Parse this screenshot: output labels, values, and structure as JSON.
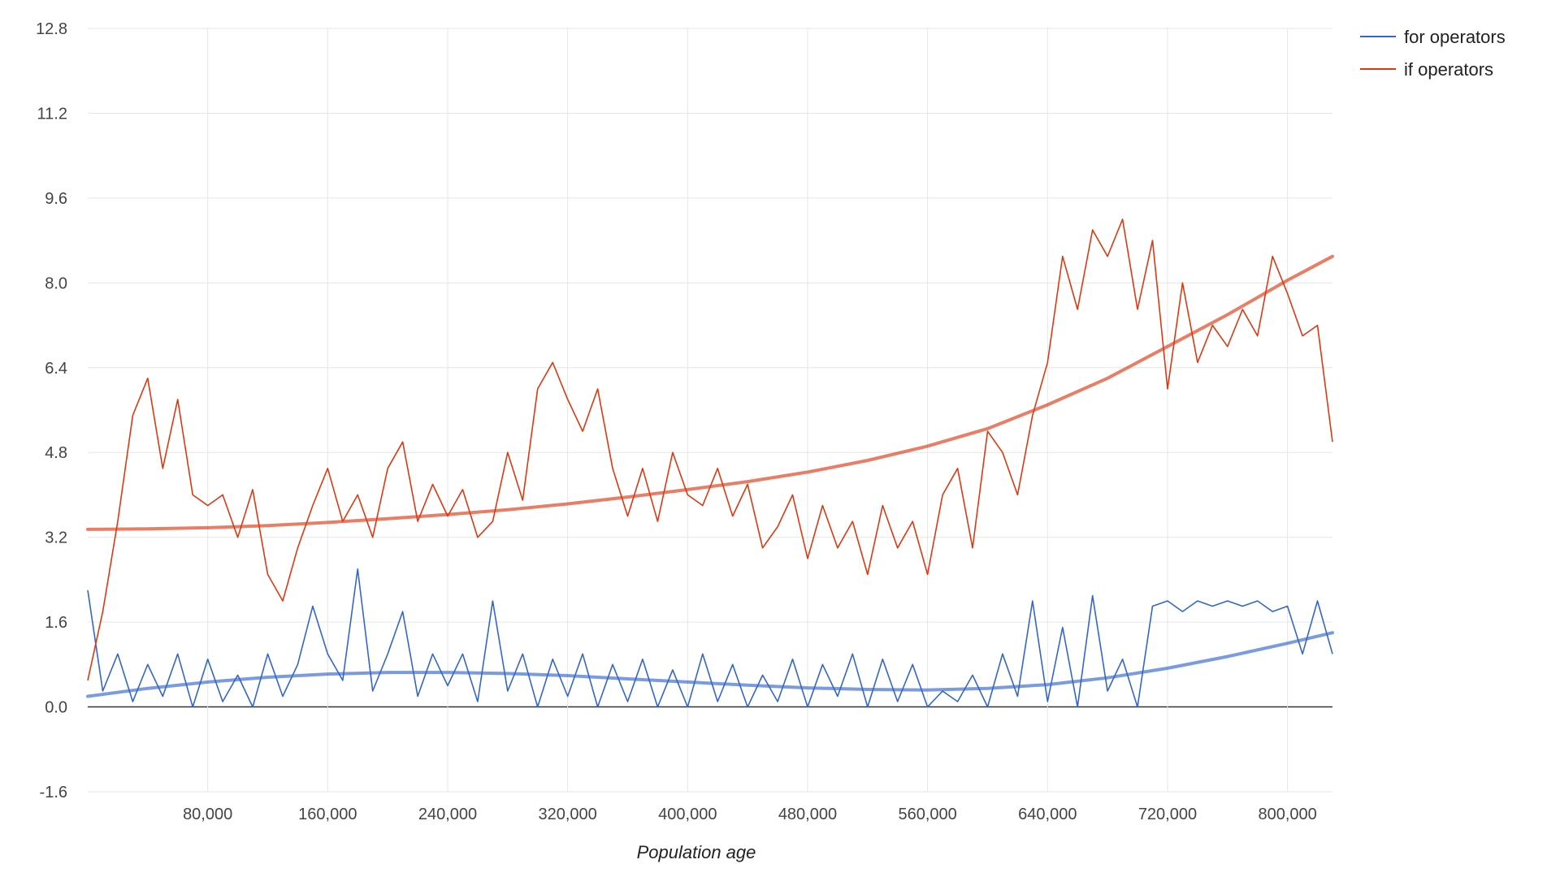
{
  "chart_data": {
    "type": "line",
    "title": "",
    "xlabel": "Population age",
    "ylabel": "",
    "xlim": [
      0,
      830000
    ],
    "ylim": [
      -1.6,
      12.8
    ],
    "grid": true,
    "legend_position": "top-right",
    "x_ticks": [
      80000,
      160000,
      240000,
      320000,
      400000,
      480000,
      560000,
      640000,
      720000,
      800000
    ],
    "x_tick_labels": [
      "80,000",
      "160,000",
      "240,000",
      "320,000",
      "400,000",
      "480,000",
      "560,000",
      "640,000",
      "720,000",
      "800,000"
    ],
    "y_ticks": [
      -1.6,
      0,
      1.6,
      3.2,
      4.8,
      6.4,
      8,
      9.6,
      11.2,
      12.8
    ],
    "y_tick_labels": [
      "-1.6",
      "0.0",
      "1.6",
      "3.2",
      "4.8",
      "6.4",
      "8.0",
      "9.6",
      "11.2",
      "12.8"
    ],
    "series": [
      {
        "name": "for operators",
        "color": "#3366cc",
        "x": [
          0,
          10000,
          20000,
          30000,
          40000,
          50000,
          60000,
          70000,
          80000,
          90000,
          100000,
          110000,
          120000,
          130000,
          140000,
          150000,
          160000,
          170000,
          180000,
          190000,
          200000,
          210000,
          220000,
          230000,
          240000,
          250000,
          260000,
          270000,
          280000,
          290000,
          300000,
          310000,
          320000,
          330000,
          340000,
          350000,
          360000,
          370000,
          380000,
          390000,
          400000,
          410000,
          420000,
          430000,
          440000,
          450000,
          460000,
          470000,
          480000,
          490000,
          500000,
          510000,
          520000,
          530000,
          540000,
          550000,
          560000,
          570000,
          580000,
          590000,
          600000,
          610000,
          620000,
          630000,
          640000,
          650000,
          660000,
          670000,
          680000,
          690000,
          700000,
          710000,
          720000,
          730000,
          740000,
          750000,
          760000,
          770000,
          780000,
          790000,
          800000,
          810000,
          820000,
          830000
        ],
        "values": [
          2.2,
          0.3,
          1.0,
          0.1,
          0.8,
          0.2,
          1.0,
          0.0,
          0.9,
          0.1,
          0.6,
          0.0,
          1.0,
          0.2,
          0.8,
          1.9,
          1.0,
          0.5,
          2.6,
          0.3,
          1.0,
          1.8,
          0.2,
          1.0,
          0.4,
          1.0,
          0.1,
          2.0,
          0.3,
          1.0,
          0.0,
          0.9,
          0.2,
          1.0,
          0.0,
          0.8,
          0.1,
          0.9,
          0.0,
          0.7,
          0.0,
          1.0,
          0.1,
          0.8,
          0.0,
          0.6,
          0.1,
          0.9,
          0.0,
          0.8,
          0.2,
          1.0,
          0.0,
          0.9,
          0.1,
          0.8,
          0.0,
          0.3,
          0.1,
          0.6,
          0.0,
          1.0,
          0.2,
          2.0,
          0.1,
          1.5,
          0.0,
          2.1,
          0.3,
          0.9,
          0.0,
          1.9,
          2.0,
          1.8,
          2.0,
          1.9,
          2.0,
          1.9,
          2.0,
          1.8,
          1.9,
          1.0,
          2.0,
          1.0
        ],
        "trendline": {
          "x": [
            0,
            40000,
            80000,
            120000,
            160000,
            200000,
            240000,
            280000,
            320000,
            360000,
            400000,
            440000,
            480000,
            520000,
            560000,
            600000,
            640000,
            680000,
            720000,
            760000,
            800000,
            830000
          ],
          "values": [
            0.2,
            0.35,
            0.47,
            0.56,
            0.62,
            0.65,
            0.65,
            0.63,
            0.59,
            0.53,
            0.47,
            0.41,
            0.36,
            0.33,
            0.32,
            0.35,
            0.42,
            0.55,
            0.73,
            0.95,
            1.2,
            1.4
          ]
        }
      },
      {
        "name": "if operators",
        "color": "#dc3912",
        "x": [
          0,
          10000,
          20000,
          30000,
          40000,
          50000,
          60000,
          70000,
          80000,
          90000,
          100000,
          110000,
          120000,
          130000,
          140000,
          150000,
          160000,
          170000,
          180000,
          190000,
          200000,
          210000,
          220000,
          230000,
          240000,
          250000,
          260000,
          270000,
          280000,
          290000,
          300000,
          310000,
          320000,
          330000,
          340000,
          350000,
          360000,
          370000,
          380000,
          390000,
          400000,
          410000,
          420000,
          430000,
          440000,
          450000,
          460000,
          470000,
          480000,
          490000,
          500000,
          510000,
          520000,
          530000,
          540000,
          550000,
          560000,
          570000,
          580000,
          590000,
          600000,
          610000,
          620000,
          630000,
          640000,
          650000,
          660000,
          670000,
          680000,
          690000,
          700000,
          710000,
          720000,
          730000,
          740000,
          750000,
          760000,
          770000,
          780000,
          790000,
          800000,
          810000,
          820000,
          830000
        ],
        "values": [
          0.5,
          1.8,
          3.5,
          5.5,
          6.2,
          4.5,
          5.8,
          4.0,
          3.8,
          4.0,
          3.2,
          4.1,
          2.5,
          2.0,
          3.0,
          3.8,
          4.5,
          3.5,
          4.0,
          3.2,
          4.5,
          5.0,
          3.5,
          4.2,
          3.6,
          4.1,
          3.2,
          3.5,
          4.8,
          3.9,
          6.0,
          6.5,
          5.8,
          5.2,
          6.0,
          4.5,
          3.6,
          4.5,
          3.5,
          4.8,
          4.0,
          3.8,
          4.5,
          3.6,
          4.2,
          3.0,
          3.4,
          4.0,
          2.8,
          3.8,
          3.0,
          3.5,
          2.5,
          3.8,
          3.0,
          3.5,
          2.5,
          4.0,
          4.5,
          3.0,
          5.2,
          4.8,
          4.0,
          5.5,
          6.5,
          8.5,
          7.5,
          9.0,
          8.5,
          9.2,
          7.5,
          8.8,
          6.0,
          8.0,
          6.5,
          7.2,
          6.8,
          7.5,
          7.0,
          8.5,
          7.8,
          7.0,
          7.2,
          5.0
        ],
        "trendline": {
          "x": [
            0,
            40000,
            80000,
            120000,
            160000,
            200000,
            240000,
            280000,
            320000,
            360000,
            400000,
            440000,
            480000,
            520000,
            560000,
            600000,
            640000,
            680000,
            720000,
            760000,
            800000,
            830000
          ],
          "values": [
            3.35,
            3.36,
            3.38,
            3.42,
            3.48,
            3.55,
            3.63,
            3.72,
            3.83,
            3.96,
            4.1,
            4.25,
            4.43,
            4.65,
            4.92,
            5.25,
            5.7,
            6.2,
            6.8,
            7.4,
            8.05,
            8.5
          ]
        }
      }
    ]
  }
}
